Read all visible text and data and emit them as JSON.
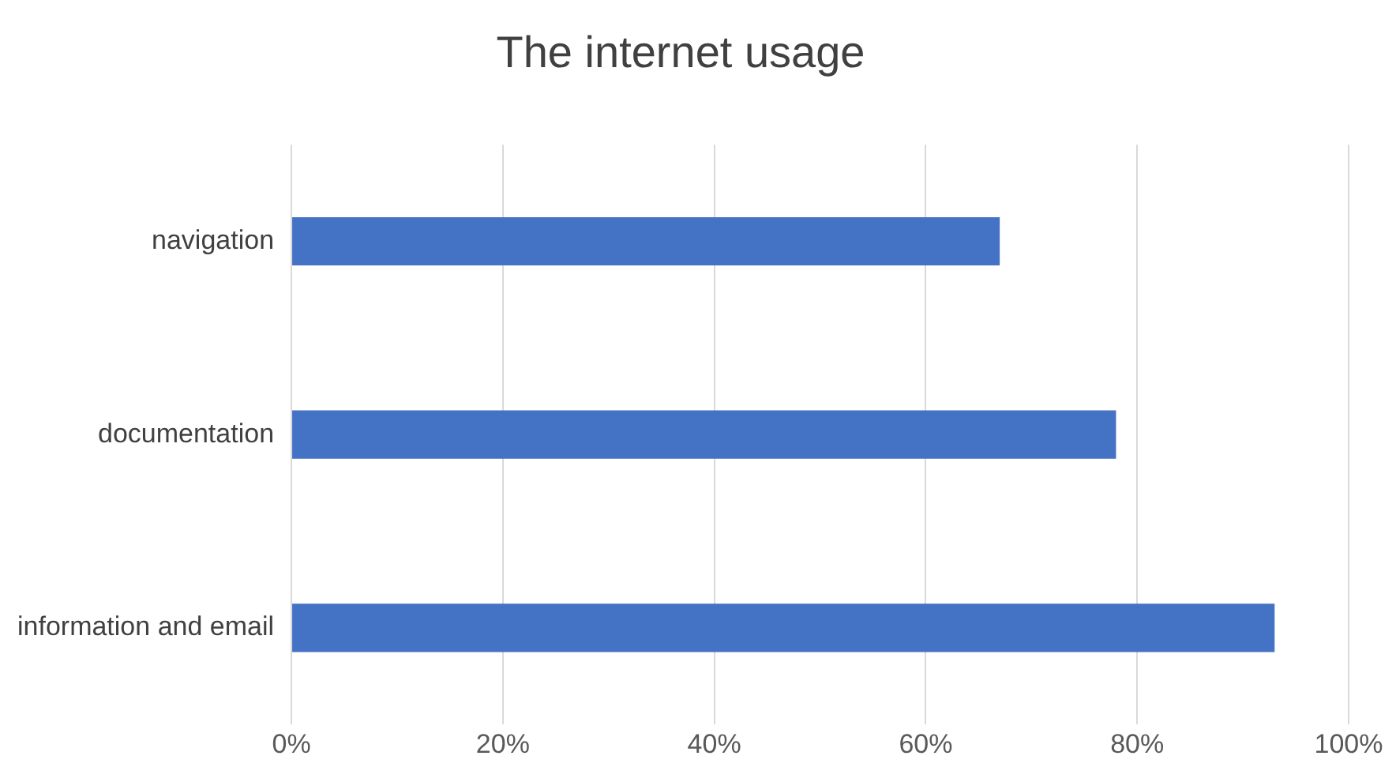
{
  "chart_data": {
    "type": "bar",
    "orientation": "horizontal",
    "title": "The internet usage",
    "categories": [
      "navigation",
      "documentation",
      "information and email"
    ],
    "values": [
      67,
      78,
      93
    ],
    "color": "#4472c4",
    "xlim": [
      0,
      100
    ],
    "xticks": [
      {
        "value": 0,
        "label": "0%"
      },
      {
        "value": 20,
        "label": "20%"
      },
      {
        "value": 40,
        "label": "40%"
      },
      {
        "value": 60,
        "label": "60%"
      },
      {
        "value": 80,
        "label": "80%"
      },
      {
        "value": 100,
        "label": "100%"
      }
    ],
    "grid": "x",
    "legend": false
  }
}
